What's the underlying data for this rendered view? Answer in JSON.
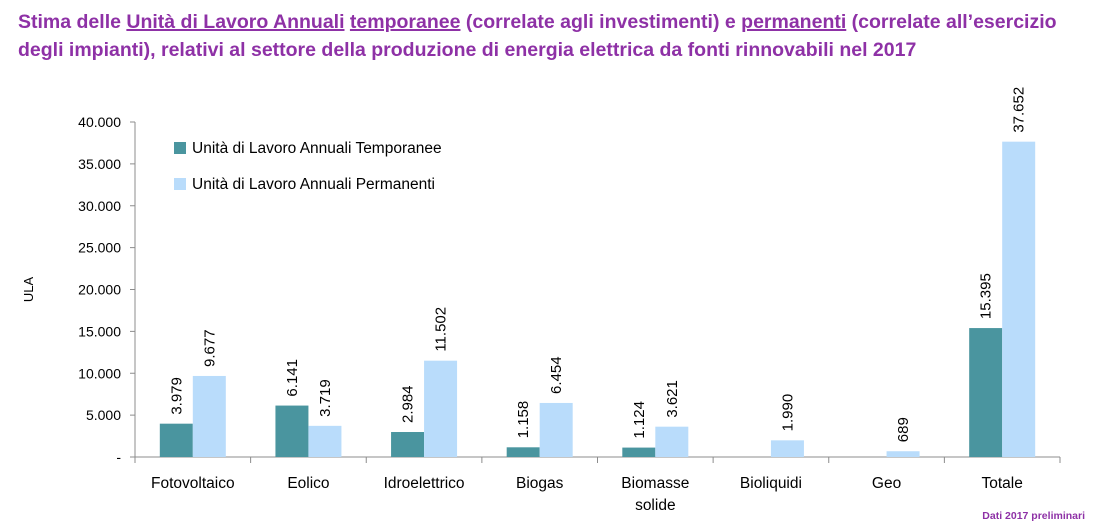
{
  "title": {
    "parts": [
      {
        "text": "Stima delle ",
        "u": false
      },
      {
        "text": "Unità di Lavoro Annuali",
        "u": true
      },
      {
        "text": " ",
        "u": false
      },
      {
        "text": "temporanee",
        "u": true
      },
      {
        "text": " (correlate agli investimenti) e ",
        "u": false
      },
      {
        "text": "permanenti",
        "u": true
      },
      {
        "text": " (correlate all’esercizio degli impianti), relativi al settore della produzione di energia elettrica da fonti rinnovabili nel 2017",
        "u": false
      }
    ]
  },
  "footnote": "Dati 2017 preliminari",
  "colors": {
    "title": "#8e31a6",
    "temporanee": "#4a959f",
    "permanenti": "#b9dcfb",
    "axis": "#8c8c8c"
  },
  "chart_data": {
    "type": "bar",
    "ylabel": "ULA",
    "xlabel": "",
    "ylim": [
      0,
      40000
    ],
    "yticks": [
      {
        "value": 0,
        "label": "-"
      },
      {
        "value": 5000,
        "label": "5.000"
      },
      {
        "value": 10000,
        "label": "10.000"
      },
      {
        "value": 15000,
        "label": "15.000"
      },
      {
        "value": 20000,
        "label": "20.000"
      },
      {
        "value": 25000,
        "label": "25.000"
      },
      {
        "value": 30000,
        "label": "30.000"
      },
      {
        "value": 35000,
        "label": "35.000"
      },
      {
        "value": 40000,
        "label": "40.000"
      }
    ],
    "grid": false,
    "legend": "top-left",
    "categories": [
      [
        "Fotovoltaico"
      ],
      [
        "Eolico"
      ],
      [
        "Idroelettrico"
      ],
      [
        "Biogas"
      ],
      [
        "Biomasse",
        "solide"
      ],
      [
        "Bioliquidi"
      ],
      [
        "Geo"
      ],
      [
        "Totale"
      ]
    ],
    "series": [
      {
        "name": "Unità di Lavoro Annuali Temporanee",
        "color": "#4a959f",
        "values": [
          3979,
          6141,
          2984,
          1158,
          1124,
          null,
          null,
          15395
        ],
        "labels": [
          "3.979",
          "6.141",
          "2.984",
          "1.158",
          "1.124",
          "",
          "",
          "15.395"
        ]
      },
      {
        "name": "Unità di Lavoro Annuali Permanenti",
        "color": "#b9dcfb",
        "values": [
          9677,
          3719,
          11502,
          6454,
          3621,
          1990,
          689,
          37652
        ],
        "labels": [
          "9.677",
          "3.719",
          "11.502",
          "6.454",
          "3.621",
          "1.990",
          "689",
          "37.652"
        ]
      }
    ]
  }
}
